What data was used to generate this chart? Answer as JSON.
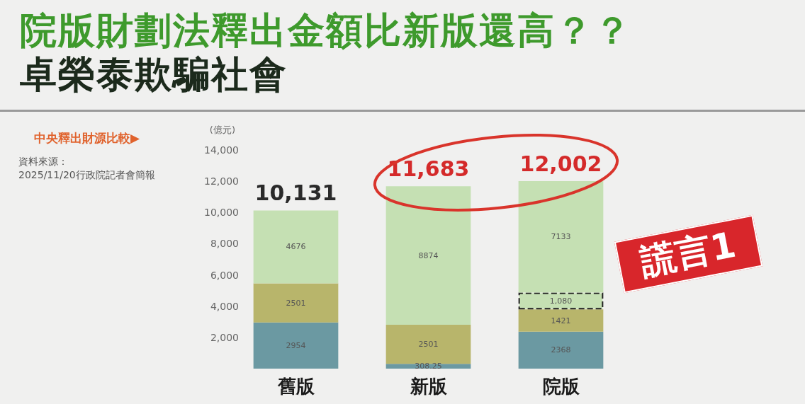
{
  "chart_data": {
    "type": "bar",
    "stacked": true,
    "title": "院版財劃法釋出金額比新版還高？？",
    "subtitle": "卓榮泰欺騙社會",
    "ylabel": "(億元)",
    "categories": [
      "舊版",
      "新版",
      "院版"
    ],
    "series": [
      {
        "color": "#6b99a2",
        "values": [
          2954,
          308.25,
          2368
        ],
        "value_labels": [
          "2954",
          "308.25",
          "2368"
        ]
      },
      {
        "color": "#b8b56b",
        "values": [
          2501,
          2501,
          1421
        ],
        "value_labels": [
          "2501",
          "2501",
          "1421"
        ]
      },
      {
        "color": "#c5e0b3",
        "values": [
          null,
          null,
          1080
        ],
        "value_labels": [
          null,
          null,
          "1,080"
        ],
        "line_style": "dashed"
      },
      {
        "color": "#c5e0b3",
        "values": [
          4676,
          8874,
          7133
        ],
        "value_labels": [
          "4676",
          "8874",
          "7133"
        ]
      }
    ],
    "totals": [
      "10,131",
      "11,683",
      "12,002"
    ],
    "ylim": [
      0,
      14000
    ],
    "yticks": [
      {
        "value": 2000,
        "label": "2,000"
      },
      {
        "value": 4000,
        "label": "4,000"
      },
      {
        "value": 6000,
        "label": "6,000"
      },
      {
        "value": 8000,
        "label": "8,000"
      },
      {
        "value": 10000,
        "label": "10,000"
      },
      {
        "value": 12000,
        "label": "12,000"
      },
      {
        "value": 14000,
        "label": "14,000"
      }
    ],
    "annotations": [
      "中央釋出財源比較▶",
      "資料來源：",
      "2025/11/20行政院記者會簡報",
      "謊言1"
    ]
  }
}
